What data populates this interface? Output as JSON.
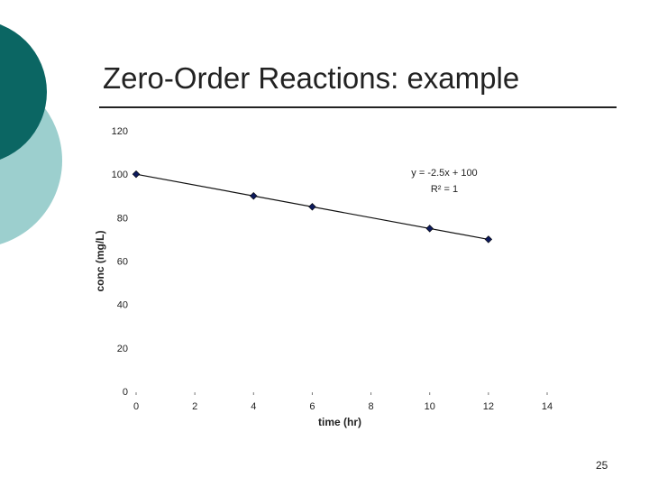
{
  "slide": {
    "title": "Zero-Order Reactions: example",
    "page_number": "25",
    "colors": {
      "circle_dark": "#0b6663",
      "circle_light": "#9ccfce",
      "marker": "#0d1a5c"
    }
  },
  "chart_data": {
    "type": "scatter",
    "title": "",
    "xlabel": "time (hr)",
    "ylabel": "conc (mg/L)",
    "xlim": [
      0,
      14
    ],
    "ylim": [
      0,
      120
    ],
    "x_ticks": [
      0,
      2,
      4,
      6,
      8,
      10,
      12,
      14
    ],
    "y_ticks": [
      0,
      20,
      40,
      60,
      80,
      100,
      120
    ],
    "grid": false,
    "series": [
      {
        "x": [
          0,
          4,
          6,
          10,
          12
        ],
        "y": [
          100,
          90,
          85,
          75,
          70
        ]
      }
    ],
    "trendline": {
      "type": "linear",
      "slope": -2.5,
      "intercept": 100,
      "x_range": [
        0,
        12
      ],
      "equation_label": "y = -2.5x + 100",
      "r2_label": "R² = 1"
    }
  }
}
